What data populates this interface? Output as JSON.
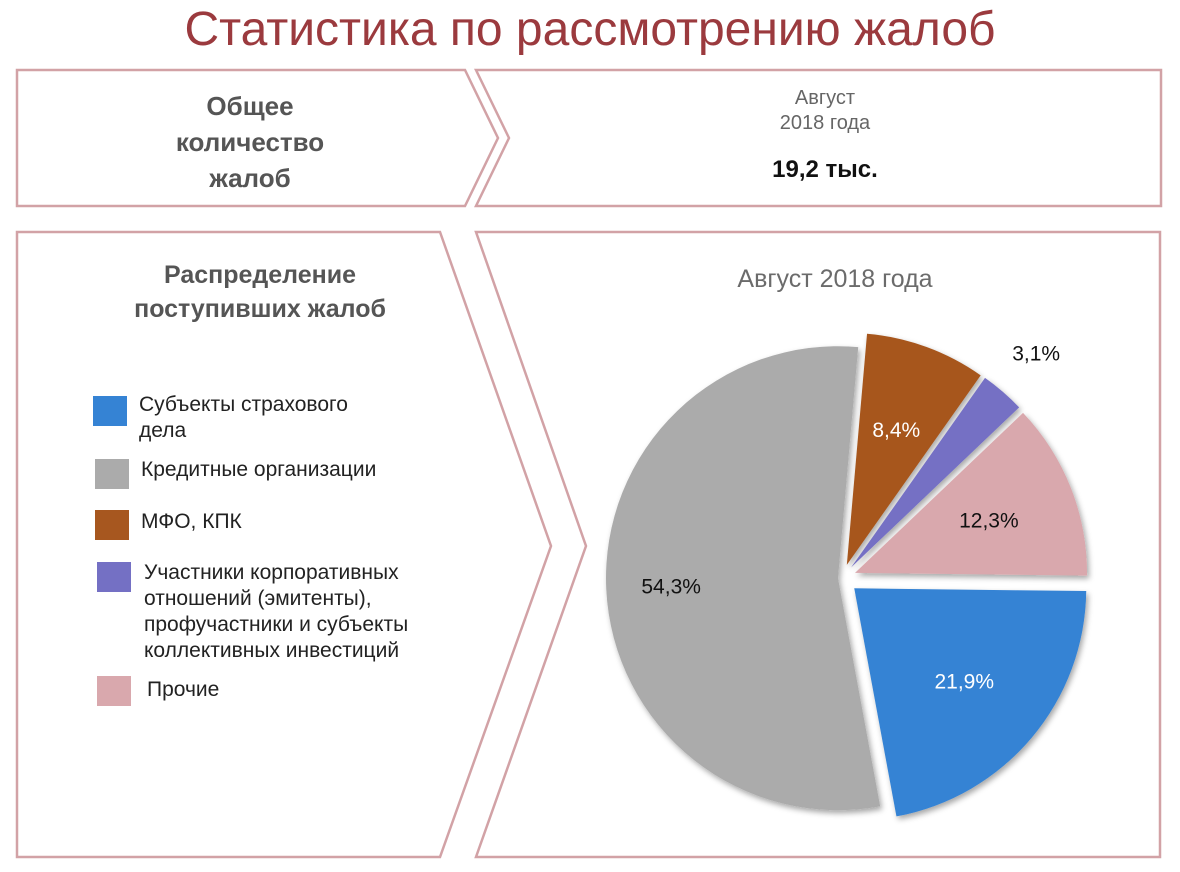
{
  "title": "Статистика по рассмотрению жалоб",
  "header": {
    "label_lines": [
      "Общее",
      "количество",
      "жалоб"
    ],
    "period_lines": [
      "Август",
      "2018 года"
    ],
    "value": "19,2 тыс."
  },
  "distribution": {
    "title_lines": [
      "Распределение",
      "поступивших жалоб"
    ]
  },
  "colors": {
    "title": "#9b3a3e",
    "frame": "#d2a2a6",
    "insurance": "#3583d4",
    "credit": "#ababab",
    "mfo": "#a7571f",
    "corporate": "#7470c4",
    "other": "#d9a8ad"
  },
  "chart_data": {
    "type": "pie",
    "title": "Август 2018 года",
    "slices": [
      {
        "key": "insurance",
        "legend_lines": [
          "Субъекты страхового",
          "дела"
        ],
        "value": 21.9,
        "label": "21,9%",
        "color": "#3583d4",
        "label_color": "#ffffff"
      },
      {
        "key": "credit",
        "legend_lines": [
          "Кредитные организации"
        ],
        "value": 54.3,
        "label": "54,3%",
        "color": "#ababab",
        "label_color": "#111111"
      },
      {
        "key": "mfo",
        "legend_lines": [
          "МФО, КПК"
        ],
        "value": 8.4,
        "label": "8,4%",
        "color": "#a7571f",
        "label_color": "#ffffff"
      },
      {
        "key": "corporate",
        "legend_lines": [
          "Участники корпоративных",
          "отношений (эмитенты),",
          "профучастники и субъекты",
          "коллективных инвестиций"
        ],
        "value": 3.1,
        "label": "3,1%",
        "color": "#7470c4",
        "label_color": "#111111"
      },
      {
        "key": "other",
        "legend_lines": [
          "Прочие"
        ],
        "value": 12.3,
        "label": "12,3%",
        "color": "#d9a8ad",
        "label_color": "#111111"
      }
    ]
  }
}
